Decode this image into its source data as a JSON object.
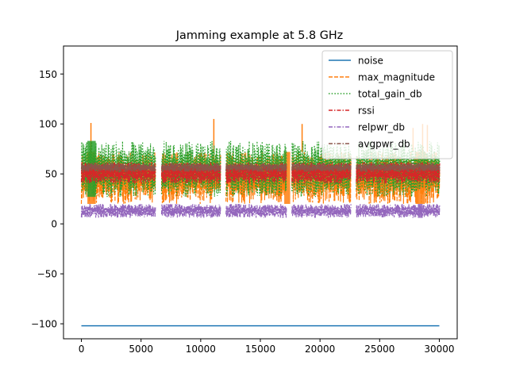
{
  "chart_data": {
    "type": "line",
    "title": "Jamming example at 5.8 GHz",
    "xlabel": "",
    "ylabel": "",
    "xlim": [
      -1500,
      31500
    ],
    "ylim": [
      -115,
      178
    ],
    "x_ticks": [
      0,
      5000,
      10000,
      15000,
      20000,
      25000,
      30000
    ],
    "x_tick_labels": [
      "0",
      "5000",
      "10000",
      "15000",
      "20000",
      "25000",
      "30000"
    ],
    "y_ticks": [
      -100,
      -50,
      0,
      50,
      100,
      150
    ],
    "y_tick_labels": [
      "−100",
      "−50",
      "0",
      "50",
      "100",
      "150"
    ],
    "legend_position": "upper-right",
    "gap_regions": [
      [
        6200,
        6700
      ],
      [
        11700,
        12100
      ],
      [
        17200,
        17600
      ],
      [
        22600,
        23000
      ]
    ],
    "series": [
      {
        "name": "noise",
        "color": "#1f77b4",
        "dash": "solid",
        "points": [
          [
            0,
            -102
          ],
          [
            30000,
            -102
          ]
        ],
        "band": null
      },
      {
        "name": "max_magnitude",
        "color": "#ff7f0e",
        "dash": "dashed",
        "points": [
          [
            0,
            45
          ],
          [
            30000,
            45
          ]
        ],
        "band": [
          20,
          72
        ],
        "spikes": [
          [
            800,
            101
          ],
          [
            11100,
            105
          ],
          [
            18500,
            100
          ],
          [
            27800,
            96
          ],
          [
            28600,
            100
          ],
          [
            29000,
            99
          ]
        ],
        "bursts": [
          [
            500,
            1200
          ],
          [
            17000,
            17500
          ],
          [
            28000,
            28800
          ]
        ]
      },
      {
        "name": "total_gain_db",
        "color": "#2ca02c",
        "dash": "dotted",
        "points": [
          [
            0,
            48
          ],
          [
            30000,
            48
          ]
        ],
        "band": [
          27,
          83
        ],
        "bursts": [
          [
            500,
            1200
          ]
        ]
      },
      {
        "name": "rssi",
        "color": "#d62728",
        "dash": "dashdot",
        "points": [
          [
            0,
            52
          ],
          [
            30000,
            52
          ]
        ],
        "band": [
          40,
          62
        ]
      },
      {
        "name": "relpwr_db",
        "color": "#9467bd",
        "dash": "dashdot",
        "points": [
          [
            0,
            13
          ],
          [
            30000,
            13
          ]
        ],
        "band": [
          6,
          20
        ],
        "bursts": [
          [
            28200,
            28600
          ]
        ]
      },
      {
        "name": "avgpwr_db",
        "color": "#8c564b",
        "dash": "dashdot",
        "points": [
          [
            0,
            57
          ],
          [
            30000,
            57
          ]
        ],
        "band": [
          52,
          61
        ]
      }
    ]
  }
}
